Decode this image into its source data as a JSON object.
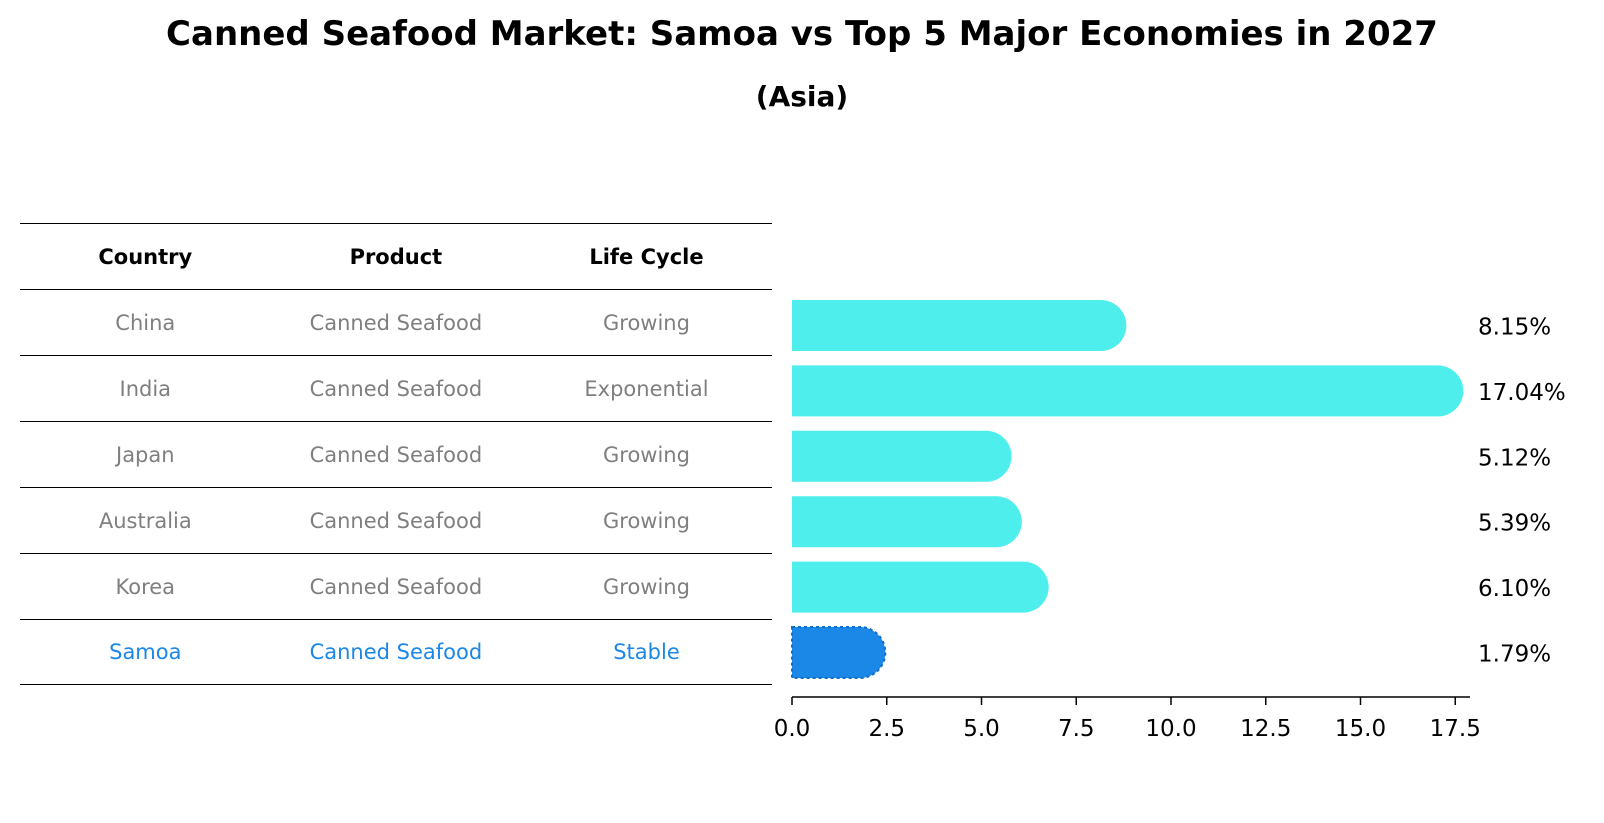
{
  "title": "Canned Seafood Market: Samoa vs Top 5 Major Economies in 2027",
  "subtitle": "(Asia)",
  "table": {
    "headers": [
      "Country",
      "Product",
      "Life Cycle"
    ],
    "rows": [
      [
        "China",
        "Canned Seafood",
        "Growing"
      ],
      [
        "India",
        "Canned Seafood",
        "Exponential"
      ],
      [
        "Japan",
        "Canned Seafood",
        "Growing"
      ],
      [
        "Australia",
        "Canned Seafood",
        "Growing"
      ],
      [
        "Korea",
        "Canned Seafood",
        "Growing"
      ],
      [
        "Samoa",
        "Canned Seafood",
        "Stable"
      ]
    ]
  },
  "colors": {
    "bar": "#4eeeec",
    "highlight": "#1b87e6",
    "muted_text": "#7f7f7f"
  },
  "chart_data": {
    "type": "bar",
    "orientation": "horizontal",
    "categories": [
      "China",
      "India",
      "Japan",
      "Australia",
      "Korea",
      "Samoa"
    ],
    "values": [
      8.15,
      17.04,
      5.12,
      5.39,
      6.1,
      1.79
    ],
    "value_labels": [
      "8.15%",
      "17.04%",
      "5.12%",
      "5.39%",
      "6.10%",
      "1.79%"
    ],
    "highlight": "Samoa",
    "xlim": [
      0,
      17.9
    ],
    "xticks": [
      0.0,
      2.5,
      5.0,
      7.5,
      10.0,
      12.5,
      15.0,
      17.5
    ],
    "xtick_labels": [
      "0.0",
      "2.5",
      "5.0",
      "7.5",
      "10.0",
      "12.5",
      "15.0",
      "17.5"
    ],
    "grid": false
  }
}
